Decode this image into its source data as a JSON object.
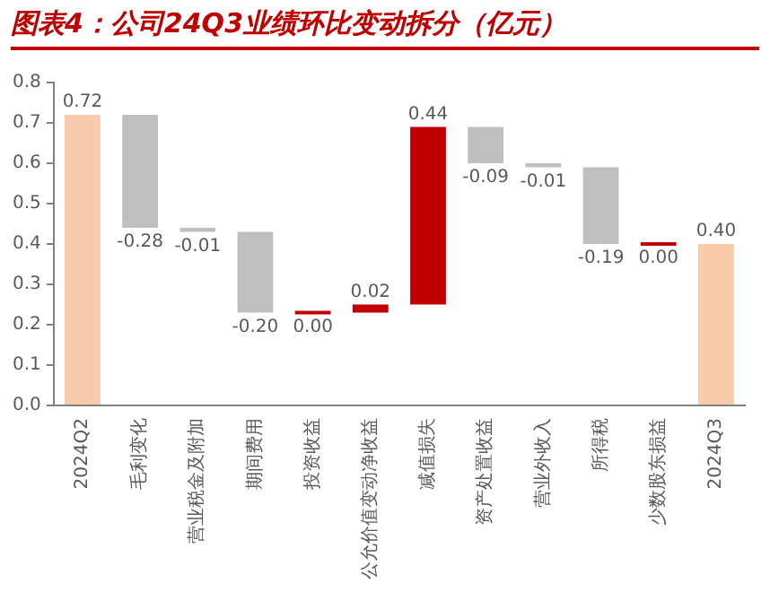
{
  "chart_data": {
    "type": "bar",
    "title": "图表4：公司24Q3业绩环比变动拆分（亿元）",
    "categories": [
      "2024Q2",
      "毛利变化",
      "营业税金及附加",
      "期间费用",
      "投资收益",
      "公允价值变动净收益",
      "减值损失",
      "资产处置收益",
      "营业外收入",
      "所得税",
      "少数股东损益",
      "2024Q3"
    ],
    "values": [
      0.72,
      -0.28,
      -0.01,
      -0.2,
      0.0,
      0.02,
      0.44,
      -0.09,
      -0.01,
      -0.19,
      0.0,
      0.4
    ],
    "base": [
      0,
      0.72,
      0.44,
      0.43,
      0.23,
      0.23,
      0.25,
      0.69,
      0.6,
      0.59,
      0.4,
      0
    ],
    "colors": [
      "#f8cbad",
      "#bfbfbf",
      "#bfbfbf",
      "#bfbfbf",
      "#c00000",
      "#c00000",
      "#c00000",
      "#bfbfbf",
      "#bfbfbf",
      "#bfbfbf",
      "#c00000",
      "#f8cbad"
    ],
    "value_labels": [
      "0.72",
      "-0.28",
      "-0.01",
      "-0.20",
      "0.00",
      "0.02",
      "0.44",
      "-0.09",
      "-0.01",
      "-0.19",
      "0.00",
      "0.40"
    ],
    "ylim": [
      0,
      0.8
    ],
    "yticks": [
      {
        "value": 0,
        "label": "0.0"
      },
      0.1,
      0.2,
      0.3,
      0.4,
      0.5,
      0.6,
      0.7,
      0.8
    ],
    "grid": false,
    "legend": false
  }
}
